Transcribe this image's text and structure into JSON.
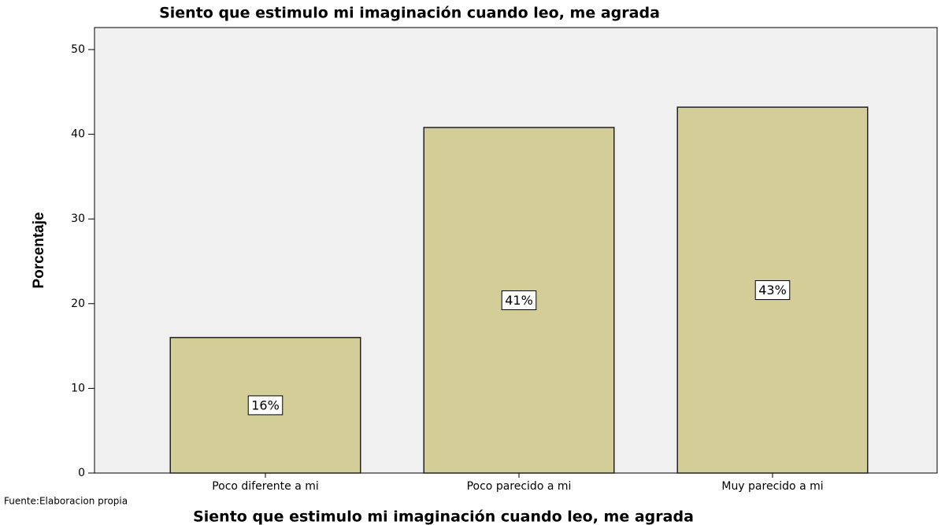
{
  "chart_data": {
    "type": "bar",
    "title": "Siento que estimulo mi imaginación cuando leo, me agrada",
    "x_label": "Siento que estimulo mi imaginación cuando leo, me agrada",
    "y_label": "Porcentaje",
    "source": "Fuente:Elaboracion propia",
    "categories": [
      "Poco diferente a mi",
      "Poco parecido a mi",
      "Muy parecido a mi"
    ],
    "values": [
      16.0,
      40.8,
      43.2
    ],
    "value_labels": [
      "16%",
      "41%",
      "43%"
    ],
    "color": "#d3ce97",
    "ylim": [
      0,
      52.6
    ],
    "yticks": [
      0,
      10,
      20,
      30,
      40,
      50
    ],
    "grid": false
  }
}
